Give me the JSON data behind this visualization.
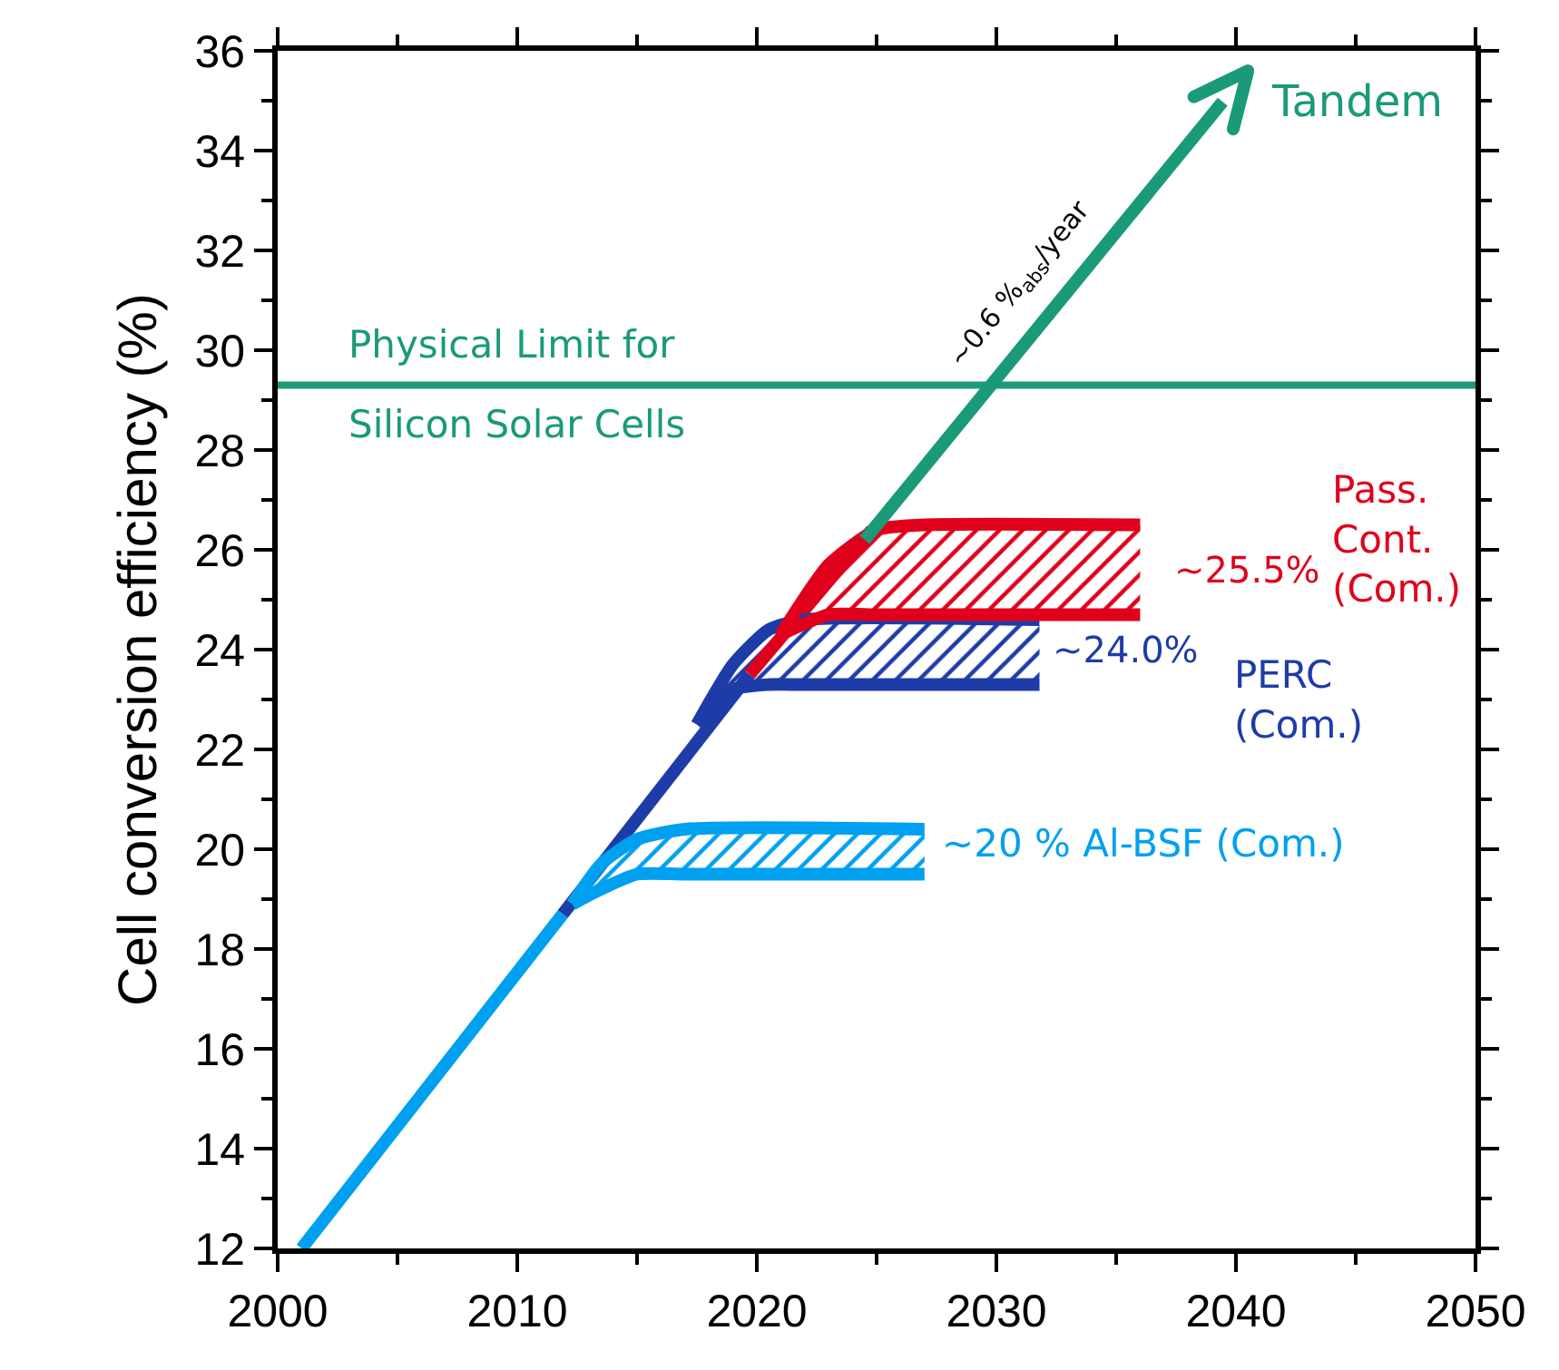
{
  "chart_data": {
    "type": "line",
    "ylabel": "Cell conversion efficiency (%)",
    "xlim": [
      2000,
      2050
    ],
    "xticks": [
      2000,
      2010,
      2020,
      2030,
      2040,
      2050
    ],
    "ylim": [
      12,
      36
    ],
    "yticks": [
      12,
      14,
      16,
      18,
      20,
      22,
      24,
      26,
      28,
      30,
      32,
      34,
      36
    ],
    "grid": false,
    "marker": "none",
    "line_style": "solid",
    "series": [
      {
        "color": "#00a0f0",
        "x": [
          2001,
          2011.9
        ],
        "values": [
          12,
          18.7
        ]
      },
      {
        "color": "#1e3ca8",
        "x": [
          2011.9,
          2019.7
        ],
        "values": [
          18.7,
          23.5
        ]
      },
      {
        "color": "#e0001b",
        "x": [
          2019.7,
          2024.8
        ],
        "values": [
          23.5,
          26.4
        ]
      },
      {
        "color": "#00a0f0",
        "x": [
          2012.3,
          2013.5,
          2015,
          2017,
          2027
        ],
        "values": [
          18.9,
          19.7,
          20.2,
          20.4,
          20.4
        ],
        "lower": [
          18.9,
          19.2,
          19.5,
          19.5,
          19.5
        ],
        "upper": [
          18.9,
          19.7,
          20.2,
          20.4,
          20.4
        ]
      },
      {
        "color": "#00a0f0",
        "x": [
          2012.3,
          2013.5,
          2015,
          2017,
          2027
        ],
        "values": [
          18.9,
          19.2,
          19.5,
          19.5,
          19.5
        ]
      },
      {
        "color": "#1e3ca8",
        "x": [
          2017.5,
          2019,
          2020.5,
          2022,
          2031.8
        ],
        "values": [
          22.5,
          23.7,
          24.4,
          24.6,
          24.6
        ],
        "lower": [
          22.5,
          23.2,
          23.3,
          23.3,
          23.3
        ],
        "upper": [
          22.5,
          23.7,
          24.4,
          24.6,
          24.6
        ]
      },
      {
        "color": "#1e3ca8",
        "x": [
          2017.5,
          2019,
          2020.5,
          2022,
          2031.8
        ],
        "values": [
          22.5,
          23.2,
          23.3,
          23.3,
          23.3
        ]
      },
      {
        "color": "#e0001b",
        "x": [
          2021,
          2023,
          2025,
          2027,
          2036
        ],
        "values": [
          24.3,
          25.7,
          26.4,
          26.5,
          26.5
        ],
        "lower": [
          24.3,
          24.7,
          24.7,
          24.7,
          24.7
        ],
        "upper": [
          24.3,
          25.7,
          26.4,
          26.5,
          26.5
        ]
      },
      {
        "color": "#e0001b",
        "x": [
          2021,
          2023,
          2025,
          2027,
          2036
        ],
        "values": [
          24.3,
          24.7,
          24.7,
          24.7,
          24.7
        ]
      }
    ],
    "ref_lines": [
      {
        "axis": "y",
        "value": 29.3,
        "label": "Physical Limit for\nSilicon Solar Cells",
        "color": "#1a9a78"
      }
    ],
    "annotations": [
      "Tandem",
      "~0.6 %$_{abs}$/year",
      "~25.5%",
      "Pass.\nCont.\n(Com.)",
      "~24.0%",
      "PERC\n(Com.)",
      "~20 % Al-BSF (Com.)"
    ]
  }
}
